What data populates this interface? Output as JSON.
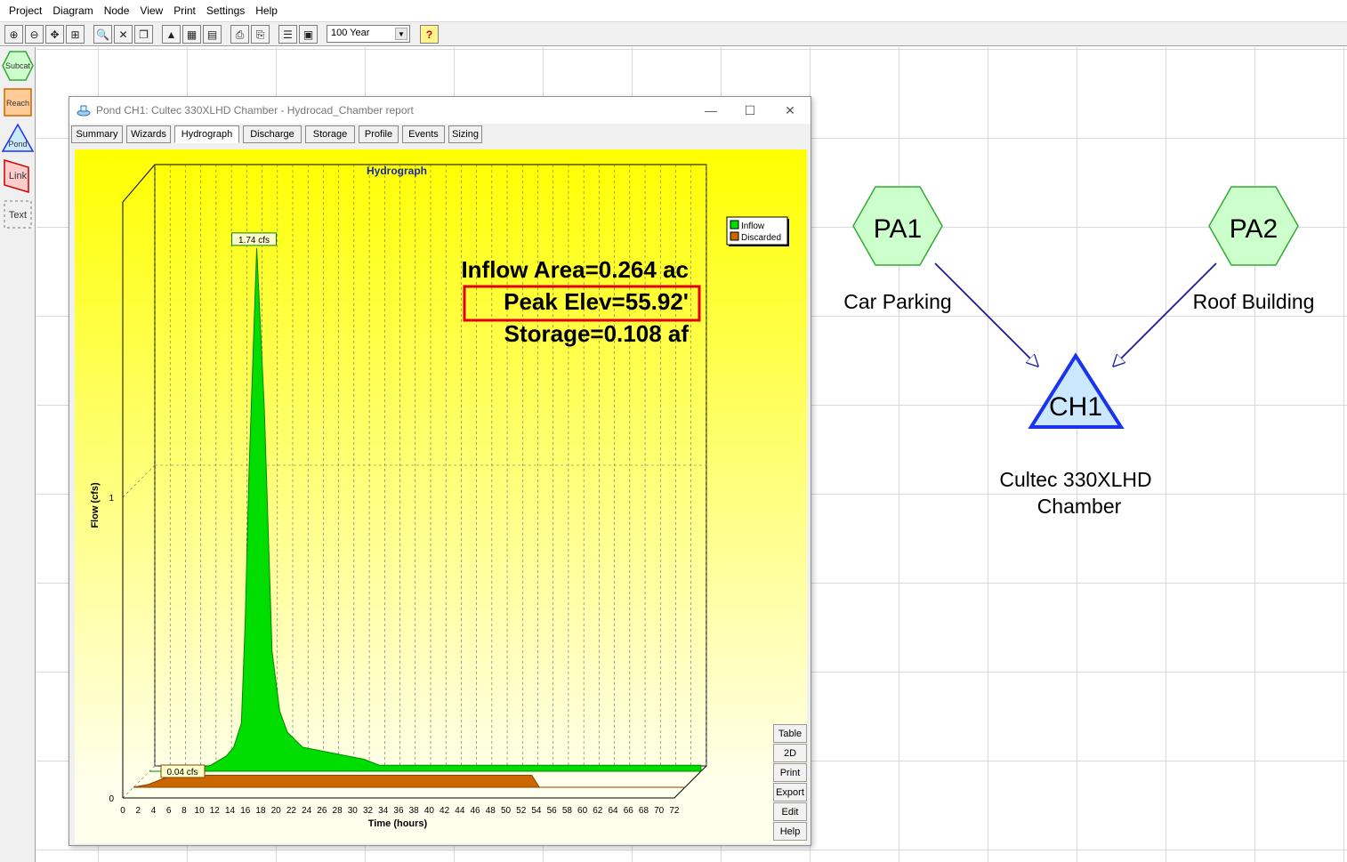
{
  "menu": [
    "Project",
    "Diagram",
    "Node",
    "View",
    "Print",
    "Settings",
    "Help"
  ],
  "toolbar": {
    "storm_value": "100 Year",
    "help_glyph": "?",
    "buttons": [
      {
        "name": "zoom-in-icon",
        "glyph": "⊕"
      },
      {
        "name": "zoom-out-icon",
        "glyph": "⊖"
      },
      {
        "name": "zoom-fit-icon",
        "glyph": "✥"
      },
      {
        "name": "zoom-all-icon",
        "glyph": "⊞"
      },
      {
        "name": "find-icon",
        "glyph": "🔍"
      },
      {
        "name": "delete-icon",
        "glyph": "✕"
      },
      {
        "name": "copy-icon",
        "glyph": "❐"
      },
      {
        "name": "hydrograph-icon",
        "glyph": "▲"
      },
      {
        "name": "grid-icon",
        "glyph": "▦"
      },
      {
        "name": "table-icon",
        "glyph": "▤"
      },
      {
        "name": "print-icon",
        "glyph": "⎙"
      },
      {
        "name": "print-preview-icon",
        "glyph": "⎘"
      },
      {
        "name": "report-icon",
        "glyph": "☰"
      },
      {
        "name": "calculator-icon",
        "glyph": "▣"
      }
    ]
  },
  "palette": [
    "Subcat",
    "Reach",
    "Pond",
    "Link",
    "Text"
  ],
  "report": {
    "title": "Pond CH1: Cultec 330XLHD Chamber - Hydrocad_Chamber report",
    "tabs": [
      "Summary",
      "Wizards",
      "Hydrograph",
      "Discharge",
      "Storage",
      "Profile",
      "Events",
      "Sizing"
    ],
    "active_tab": "Hydrograph",
    "side_buttons": [
      "Table",
      "2D",
      "Print",
      "Export",
      "Edit",
      "Help"
    ]
  },
  "chart_data": {
    "type": "area",
    "title": "Hydrograph",
    "xlabel": "Time (hours)",
    "ylabel": "Flow (cfs)",
    "xlim": [
      0,
      72
    ],
    "ylim": [
      0,
      2
    ],
    "x_ticks": [
      0,
      2,
      4,
      6,
      8,
      10,
      12,
      14,
      16,
      18,
      20,
      22,
      24,
      26,
      28,
      30,
      32,
      34,
      36,
      38,
      40,
      42,
      44,
      46,
      48,
      50,
      52,
      54,
      56,
      58,
      60,
      62,
      64,
      66,
      68,
      70,
      72
    ],
    "y_ticks": [
      0,
      1
    ],
    "grid": true,
    "legend_position": "top-right",
    "series": [
      {
        "name": "Inflow",
        "color": "#00dd00",
        "x": [
          0,
          4,
          8,
          10,
          11,
          12,
          12.5,
          13,
          14,
          15,
          16,
          17,
          18,
          20,
          24,
          28,
          30,
          72
        ],
        "y": [
          0,
          0,
          0.02,
          0.05,
          0.08,
          0.16,
          0.5,
          1.0,
          1.74,
          1.2,
          0.4,
          0.2,
          0.13,
          0.08,
          0.06,
          0.04,
          0.02,
          0.02
        ]
      },
      {
        "name": "Discarded",
        "color": "#cc6600",
        "x": [
          0,
          2,
          4,
          6,
          52,
          53,
          72
        ],
        "y": [
          0,
          0.01,
          0.03,
          0.04,
          0.04,
          0.0,
          0.0
        ]
      }
    ],
    "annotations": {
      "peak_label": "1.74 cfs",
      "discarded_label": "0.04 cfs",
      "info_lines": [
        "Inflow Area=0.264 ac",
        "Peak Elev=55.92'",
        "Storage=0.108 af"
      ],
      "highlighted_line": 1
    }
  },
  "diagram": {
    "nodes": [
      {
        "id": "PA1",
        "shape": "hexagon",
        "label": "Car Parking",
        "fill": "#ccffcc",
        "stroke": "#33aa33"
      },
      {
        "id": "PA2",
        "shape": "hexagon",
        "label": "Roof Building",
        "fill": "#ccffcc",
        "stroke": "#33aa33"
      },
      {
        "id": "CH1",
        "shape": "triangle",
        "label_line1": "Cultec 330XLHD",
        "label_line2": "Chamber",
        "fill": "#cce8ff",
        "stroke": "#1a33ee"
      }
    ],
    "links": [
      {
        "from": "PA1",
        "to": "CH1"
      },
      {
        "from": "PA2",
        "to": "CH1"
      }
    ],
    "link_color": "#1a1aa0"
  }
}
